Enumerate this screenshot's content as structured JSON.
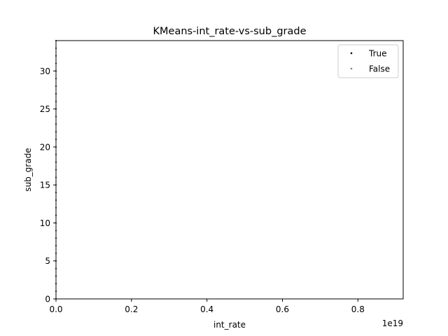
{
  "chart_data": {
    "type": "scatter",
    "title": "KMeans-int_rate-vs-sub_grade",
    "xlabel": "int_rate",
    "ylabel": "sub_grade",
    "x_offset_label": "1e19",
    "xlim": [
      0,
      0.92
    ],
    "ylim": [
      0,
      34
    ],
    "x_ticks": [
      0.0,
      0.2,
      0.4,
      0.6,
      0.8
    ],
    "x_tick_labels": [
      "0.0",
      "0.2",
      "0.4",
      "0.6",
      "0.8"
    ],
    "y_ticks": [
      0,
      5,
      10,
      15,
      20,
      25,
      30
    ],
    "y_tick_labels": [
      "0",
      "5",
      "10",
      "15",
      "20",
      "25",
      "30"
    ],
    "grid": false,
    "legend_placement": "top-right",
    "series": [
      {
        "name": "True",
        "color": "#000000",
        "x": [
          0,
          0,
          0,
          0,
          0,
          0,
          0,
          0,
          0,
          0,
          0,
          0,
          0,
          0,
          0,
          0,
          0,
          0,
          0,
          0,
          0,
          0,
          0,
          0,
          0,
          0,
          0,
          0,
          0,
          0,
          0,
          0,
          0,
          0,
          0
        ],
        "y": [
          0,
          1,
          2,
          3,
          4,
          5,
          6,
          7,
          8,
          9,
          10,
          11,
          12,
          13,
          14,
          15,
          16,
          17,
          18,
          19,
          20,
          21,
          22,
          23,
          24,
          25,
          26,
          27,
          28,
          29,
          30,
          31,
          32,
          33,
          34
        ]
      },
      {
        "name": "False",
        "color": "#808080",
        "x": [],
        "y": []
      }
    ]
  }
}
